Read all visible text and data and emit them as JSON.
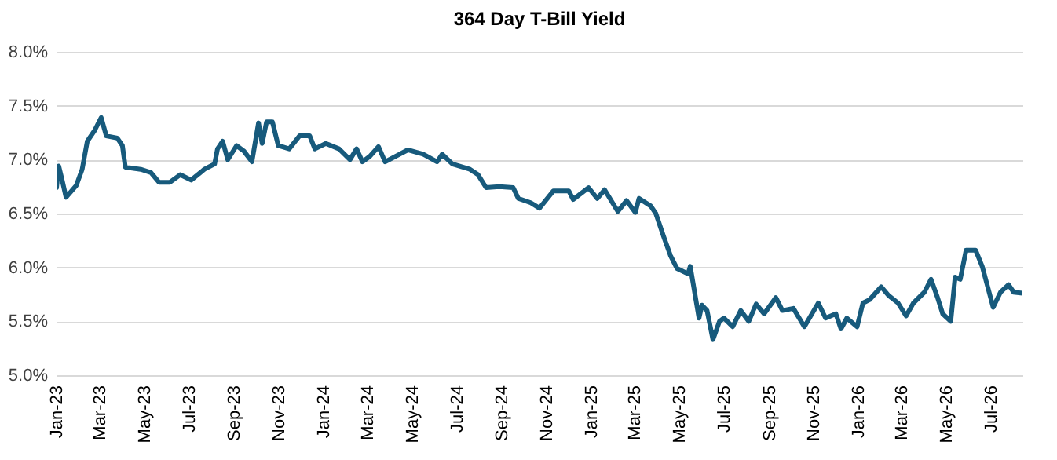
{
  "chart_data": {
    "type": "line",
    "title": "364 Day T-Bill Yield",
    "xlim": [
      "2023-01-01",
      "2026-08-13"
    ],
    "xticks": [
      {
        "value": "2023-01",
        "label": "Jan-23"
      },
      {
        "value": "2023-03",
        "label": "Mar-23"
      },
      {
        "value": "2023-05",
        "label": "May-23"
      },
      {
        "value": "2023-07",
        "label": "Jul-23"
      },
      {
        "value": "2023-09",
        "label": "Sep-23"
      },
      {
        "value": "2023-11",
        "label": "Nov-23"
      },
      {
        "value": "2024-01",
        "label": "Jan-24"
      },
      {
        "value": "2024-03",
        "label": "Mar-24"
      },
      {
        "value": "2024-05",
        "label": "May-24"
      },
      {
        "value": "2024-07",
        "label": "Jul-24"
      },
      {
        "value": "2024-09",
        "label": "Sep-24"
      },
      {
        "value": "2024-11",
        "label": "Nov-24"
      },
      {
        "value": "2025-01",
        "label": "Jan-25"
      },
      {
        "value": "2025-03",
        "label": "Mar-25"
      },
      {
        "value": "2025-05",
        "label": "May-25"
      },
      {
        "value": "2025-07",
        "label": "Jul-25"
      },
      {
        "value": "2025-09",
        "label": "Sep-25"
      },
      {
        "value": "2025-11",
        "label": "Nov-25"
      },
      {
        "value": "2026-01",
        "label": "Jan-26"
      },
      {
        "value": "2026-03",
        "label": "Mar-26"
      },
      {
        "value": "2026-05",
        "label": "May-26"
      },
      {
        "value": "2026-07",
        "label": "Jul-26"
      }
    ],
    "ylim": [
      5.0,
      8.0
    ],
    "yticks": [
      {
        "value": 5.0,
        "label": "5.0%"
      },
      {
        "value": 5.5,
        "label": "5.5%"
      },
      {
        "value": 6.0,
        "label": "6.0%"
      },
      {
        "value": 6.5,
        "label": "6.5%"
      },
      {
        "value": 7.0,
        "label": "7.0%"
      },
      {
        "value": 7.5,
        "label": "7.5%"
      },
      {
        "value": 8.0,
        "label": "8.0%"
      }
    ],
    "grid": "y",
    "x": [
      "2023-01-01",
      "2023-01-04",
      "2023-01-08",
      "2023-01-14",
      "2023-01-28",
      "2023-02-05",
      "2023-02-12",
      "2023-02-22",
      "2023-03-03",
      "2023-03-10",
      "2023-03-25",
      "2023-04-01",
      "2023-04-05",
      "2023-04-26",
      "2023-05-10",
      "2023-05-21",
      "2023-06-05",
      "2023-06-19",
      "2023-07-04",
      "2023-07-22",
      "2023-08-05",
      "2023-08-09",
      "2023-08-16",
      "2023-08-23",
      "2023-09-04",
      "2023-09-14",
      "2023-09-25",
      "2023-10-04",
      "2023-10-09",
      "2023-10-15",
      "2023-10-23",
      "2023-10-31",
      "2023-11-15",
      "2023-11-29",
      "2023-12-13",
      "2023-12-20",
      "2024-01-04",
      "2024-01-22",
      "2024-02-06",
      "2024-02-15",
      "2024-02-23",
      "2024-03-04",
      "2024-03-16",
      "2024-03-25",
      "2024-04-25",
      "2024-05-16",
      "2024-06-04",
      "2024-06-11",
      "2024-06-25",
      "2024-07-19",
      "2024-07-30",
      "2024-08-10",
      "2024-08-28",
      "2024-09-16",
      "2024-09-23",
      "2024-10-10",
      "2024-10-22",
      "2024-11-10",
      "2024-12-01",
      "2024-12-07",
      "2024-12-28",
      "2025-01-09",
      "2025-01-19",
      "2025-02-06",
      "2025-02-18",
      "2025-03-02",
      "2025-03-07",
      "2025-03-23",
      "2025-03-30",
      "2025-04-10",
      "2025-04-19",
      "2025-04-28",
      "2025-05-13",
      "2025-05-16",
      "2025-05-28",
      "2025-06-01",
      "2025-06-08",
      "2025-06-16",
      "2025-06-25",
      "2025-07-01",
      "2025-07-13",
      "2025-07-24",
      "2025-08-04",
      "2025-08-14",
      "2025-08-25",
      "2025-09-10",
      "2025-09-19",
      "2025-10-04",
      "2025-10-19",
      "2025-11-07",
      "2025-11-17",
      "2025-12-01",
      "2025-12-08",
      "2025-12-16",
      "2025-12-30",
      "2026-01-07",
      "2026-01-16",
      "2026-02-01",
      "2026-02-11",
      "2026-02-24",
      "2026-03-07",
      "2026-03-17",
      "2026-04-01",
      "2026-04-10",
      "2026-04-19",
      "2026-04-26",
      "2026-05-07",
      "2026-05-13",
      "2026-05-20",
      "2026-05-28",
      "2026-06-10",
      "2026-06-19",
      "2026-07-04",
      "2026-07-14",
      "2026-07-25",
      "2026-08-01",
      "2026-08-13"
    ],
    "series": [
      {
        "color": "#175a7c",
        "values": [
          6.74,
          6.94,
          6.83,
          6.65,
          6.76,
          6.91,
          7.17,
          7.27,
          7.39,
          7.22,
          7.2,
          7.13,
          6.93,
          6.91,
          6.88,
          6.79,
          6.79,
          6.86,
          6.81,
          6.91,
          6.96,
          7.1,
          7.17,
          7.0,
          7.13,
          7.08,
          6.98,
          7.34,
          7.15,
          7.35,
          7.35,
          7.13,
          7.1,
          7.22,
          7.22,
          7.1,
          7.15,
          7.1,
          7.0,
          7.1,
          6.98,
          7.03,
          7.12,
          6.98,
          7.09,
          7.05,
          6.98,
          7.05,
          6.96,
          6.91,
          6.86,
          6.74,
          6.75,
          6.74,
          6.64,
          6.6,
          6.55,
          6.71,
          6.71,
          6.63,
          6.74,
          6.64,
          6.72,
          6.52,
          6.62,
          6.51,
          6.64,
          6.57,
          6.5,
          6.28,
          6.11,
          5.99,
          5.94,
          6.01,
          5.53,
          5.65,
          5.6,
          5.33,
          5.5,
          5.53,
          5.45,
          5.6,
          5.5,
          5.66,
          5.57,
          5.72,
          5.6,
          5.62,
          5.45,
          5.67,
          5.53,
          5.57,
          5.43,
          5.53,
          5.45,
          5.67,
          5.7,
          5.82,
          5.74,
          5.67,
          5.55,
          5.67,
          5.77,
          5.89,
          5.72,
          5.57,
          5.5,
          5.91,
          5.89,
          6.16,
          6.16,
          6.01,
          5.63,
          5.77,
          5.84,
          5.77,
          5.76
        ]
      }
    ]
  }
}
